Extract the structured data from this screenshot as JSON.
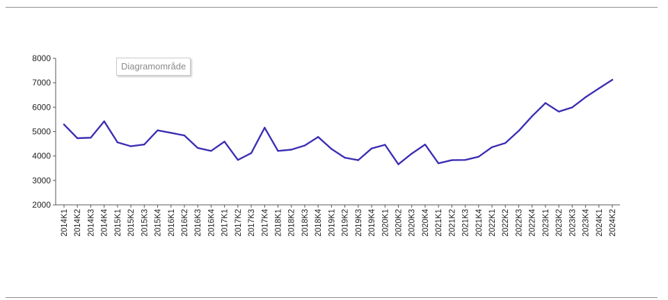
{
  "header": {
    "text": ""
  },
  "tooltip": {
    "text": "Diagramområde"
  },
  "colors": {
    "line": "#3b2db3",
    "axis": "#555555",
    "rule": "#8c8c8c"
  },
  "chart_data": {
    "type": "line",
    "title": "",
    "xlabel": "",
    "ylabel": "",
    "ylim": [
      2000,
      8000
    ],
    "yticks": [
      2000,
      3000,
      4000,
      5000,
      6000,
      7000,
      8000
    ],
    "grid": false,
    "legend": "none",
    "categories": [
      "2014K1",
      "2014K2",
      "2014K3",
      "2014K4",
      "2015K1",
      "2015K2",
      "2015K3",
      "2015K4",
      "2016K1",
      "2016K2",
      "2016K3",
      "2016K4",
      "2017K1",
      "2017K2",
      "2017K3",
      "2017K4",
      "2018K1",
      "2018K2",
      "2018K3",
      "2018K4",
      "2019K1",
      "2019K2",
      "2019K3",
      "2019K4",
      "2020K1",
      "2020K2",
      "2020K3",
      "2020K4",
      "2021K1",
      "2021K2",
      "2021K3",
      "2021K4",
      "2022K1",
      "2022K2",
      "2022K3",
      "2022K4",
      "2023K1",
      "2023K2",
      "2023K3",
      "2023K4",
      "2024K1",
      "2024K2"
    ],
    "series": [
      {
        "values": [
          5290,
          4730,
          4750,
          5420,
          4560,
          4400,
          4470,
          5050,
          4950,
          4840,
          4330,
          4210,
          4590,
          3840,
          4120,
          5160,
          4210,
          4260,
          4430,
          4780,
          4290,
          3930,
          3830,
          4310,
          4460,
          3660,
          4100,
          4470,
          3700,
          3830,
          3840,
          3970,
          4360,
          4530,
          5030,
          5630,
          6170,
          5820,
          5990,
          6410,
          6770,
          7120
        ]
      }
    ]
  }
}
